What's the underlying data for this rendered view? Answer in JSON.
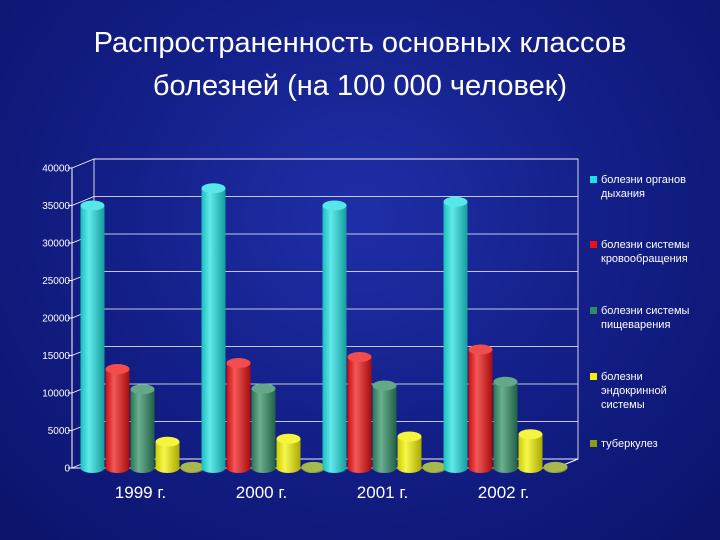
{
  "slide": {
    "title": "Распространенность основных классов\nболезней (на 100 000 человек)"
  },
  "chart_data": {
    "type": "bar",
    "title": "Распространенность основных классов болезней (на 100 000 человек)",
    "categories": [
      "1999 г.",
      "2000 г.",
      "2001 г.",
      "2002 г."
    ],
    "series": [
      {
        "name": "болезни органов дыхания",
        "color": "#1ee0e0",
        "values": [
          35000,
          37300,
          35000,
          35500
        ]
      },
      {
        "name": "болезни системы кровообращения",
        "color": "#ee1111",
        "values": [
          13200,
          14000,
          14800,
          15800
        ]
      },
      {
        "name": "болезни системы пищеварения",
        "color": "#2e8b62",
        "values": [
          10500,
          10600,
          11000,
          11500
        ]
      },
      {
        "name": "болезни эндокринной системы",
        "color": "#f2f200",
        "values": [
          3500,
          3900,
          4200,
          4500
        ]
      },
      {
        "name": "туберкулез",
        "color": "#8aa010",
        "values": [
          150,
          150,
          150,
          150
        ]
      }
    ],
    "ylim": [
      0,
      40000
    ],
    "yticks": [
      0,
      5000,
      10000,
      15000,
      20000,
      25000,
      30000,
      35000,
      40000
    ],
    "legend_position": "right",
    "grid": true,
    "style": "3d-cylinder"
  }
}
